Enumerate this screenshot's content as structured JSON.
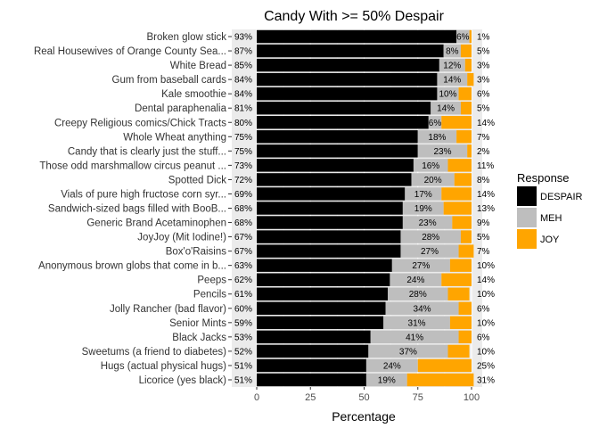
{
  "chart_data": {
    "type": "bar",
    "orientation": "horizontal",
    "stacked": true,
    "title": "Candy With >= 50% Despair",
    "xlabel": "Percentage",
    "ylabel": "",
    "xlim": [
      0,
      100
    ],
    "xticks": [
      0,
      25,
      50,
      75,
      100
    ],
    "grid": true,
    "legend": {
      "title": "Response",
      "position": "right",
      "entries": [
        {
          "name": "DESPAIR",
          "color": "#000000"
        },
        {
          "name": "MEH",
          "color": "#bebebe"
        },
        {
          "name": "JOY",
          "color": "#ffa500"
        }
      ]
    },
    "categories": [
      "Broken glow stick",
      "Real Housewives of Orange County Sea...",
      "White Bread",
      "Gum from baseball cards",
      "Kale smoothie",
      "Dental paraphenalia",
      "Creepy Religious comics/Chick Tracts",
      "Whole Wheat anything",
      "Candy that is clearly just the stuff...",
      "Those odd marshmallow circus peanut ...",
      "Spotted Dick",
      "Vials of pure high fructose corn syr...",
      "Sandwich-sized bags filled with BooB...",
      "Generic Brand Acetaminophen",
      "JoyJoy (Mit Iodine!)",
      "Box'o'Raisins",
      "Anonymous brown globs that come in b...",
      "Peeps",
      "Pencils",
      "Jolly Rancher (bad flavor)",
      "Senior Mints",
      "Black Jacks",
      "Sweetums (a friend to diabetes)",
      "Hugs (actual physical hugs)",
      "Licorice (yes black)"
    ],
    "series": [
      {
        "name": "DESPAIR",
        "color": "#000000",
        "values": [
          93,
          87,
          85,
          84,
          84,
          81,
          80,
          75,
          75,
          73,
          72,
          69,
          68,
          68,
          67,
          67,
          63,
          62,
          61,
          60,
          59,
          53,
          52,
          51,
          51
        ],
        "labels": [
          "93%",
          "87%",
          "85%",
          "84%",
          "84%",
          "81%",
          "80%",
          "75%",
          "75%",
          "73%",
          "72%",
          "69%",
          "68%",
          "68%",
          "67%",
          "67%",
          "63%",
          "62%",
          "61%",
          "60%",
          "59%",
          "53%",
          "52%",
          "51%",
          "51%"
        ]
      },
      {
        "name": "MEH",
        "color": "#bebebe",
        "values": [
          6,
          8,
          12,
          14,
          10,
          14,
          6,
          18,
          23,
          16,
          20,
          17,
          19,
          23,
          28,
          27,
          27,
          24,
          28,
          34,
          31,
          41,
          37,
          24,
          19
        ],
        "labels": [
          "6%",
          "8%",
          "12%",
          "14%",
          "10%",
          "14%",
          "6%",
          "18%",
          "23%",
          "16%",
          "20%",
          "17%",
          "19%",
          "23%",
          "28%",
          "27%",
          "27%",
          "24%",
          "28%",
          "34%",
          "31%",
          "41%",
          "37%",
          "24%",
          "19%"
        ]
      },
      {
        "name": "JOY",
        "color": "#ffa500",
        "values": [
          1,
          5,
          3,
          3,
          6,
          5,
          14,
          7,
          2,
          11,
          8,
          14,
          13,
          9,
          5,
          7,
          10,
          14,
          10,
          6,
          10,
          6,
          10,
          25,
          31
        ],
        "labels": [
          "1%",
          "5%",
          "3%",
          "3%",
          "6%",
          "5%",
          "14%",
          "7%",
          "2%",
          "11%",
          "8%",
          "14%",
          "13%",
          "9%",
          "5%",
          "7%",
          "10%",
          "14%",
          "10%",
          "6%",
          "10%",
          "6%",
          "10%",
          "25%",
          "31%"
        ]
      }
    ]
  }
}
